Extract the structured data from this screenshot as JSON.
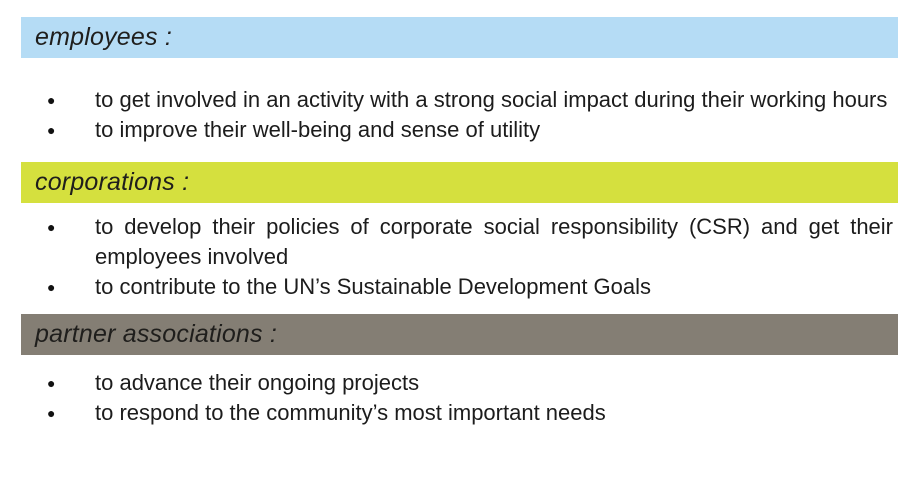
{
  "page": {
    "background": "#ffffff",
    "text_color": "#1c1c1c"
  },
  "bullet_icon": "●",
  "sections": [
    {
      "id": "employees",
      "header": {
        "label": "employees :",
        "color": "#b5dcf5"
      },
      "bullets": [
        "to get involved in an activity with a strong social impact during their working hours",
        "to improve their well-being and sense of utility"
      ]
    },
    {
      "id": "corporations",
      "header": {
        "label": "corporations :",
        "color": "#d5e03e"
      },
      "bullets": [
        "to develop their policies of corporate social responsibility (CSR) and get their employees involved",
        "to contribute to the UN’s Sustainable Development Goals"
      ]
    },
    {
      "id": "partner-associations",
      "header": {
        "label": "partner associations :",
        "color": "#847e74"
      },
      "bullets": [
        "to advance their ongoing projects",
        "to respond to the community’s most important needs"
      ]
    }
  ]
}
